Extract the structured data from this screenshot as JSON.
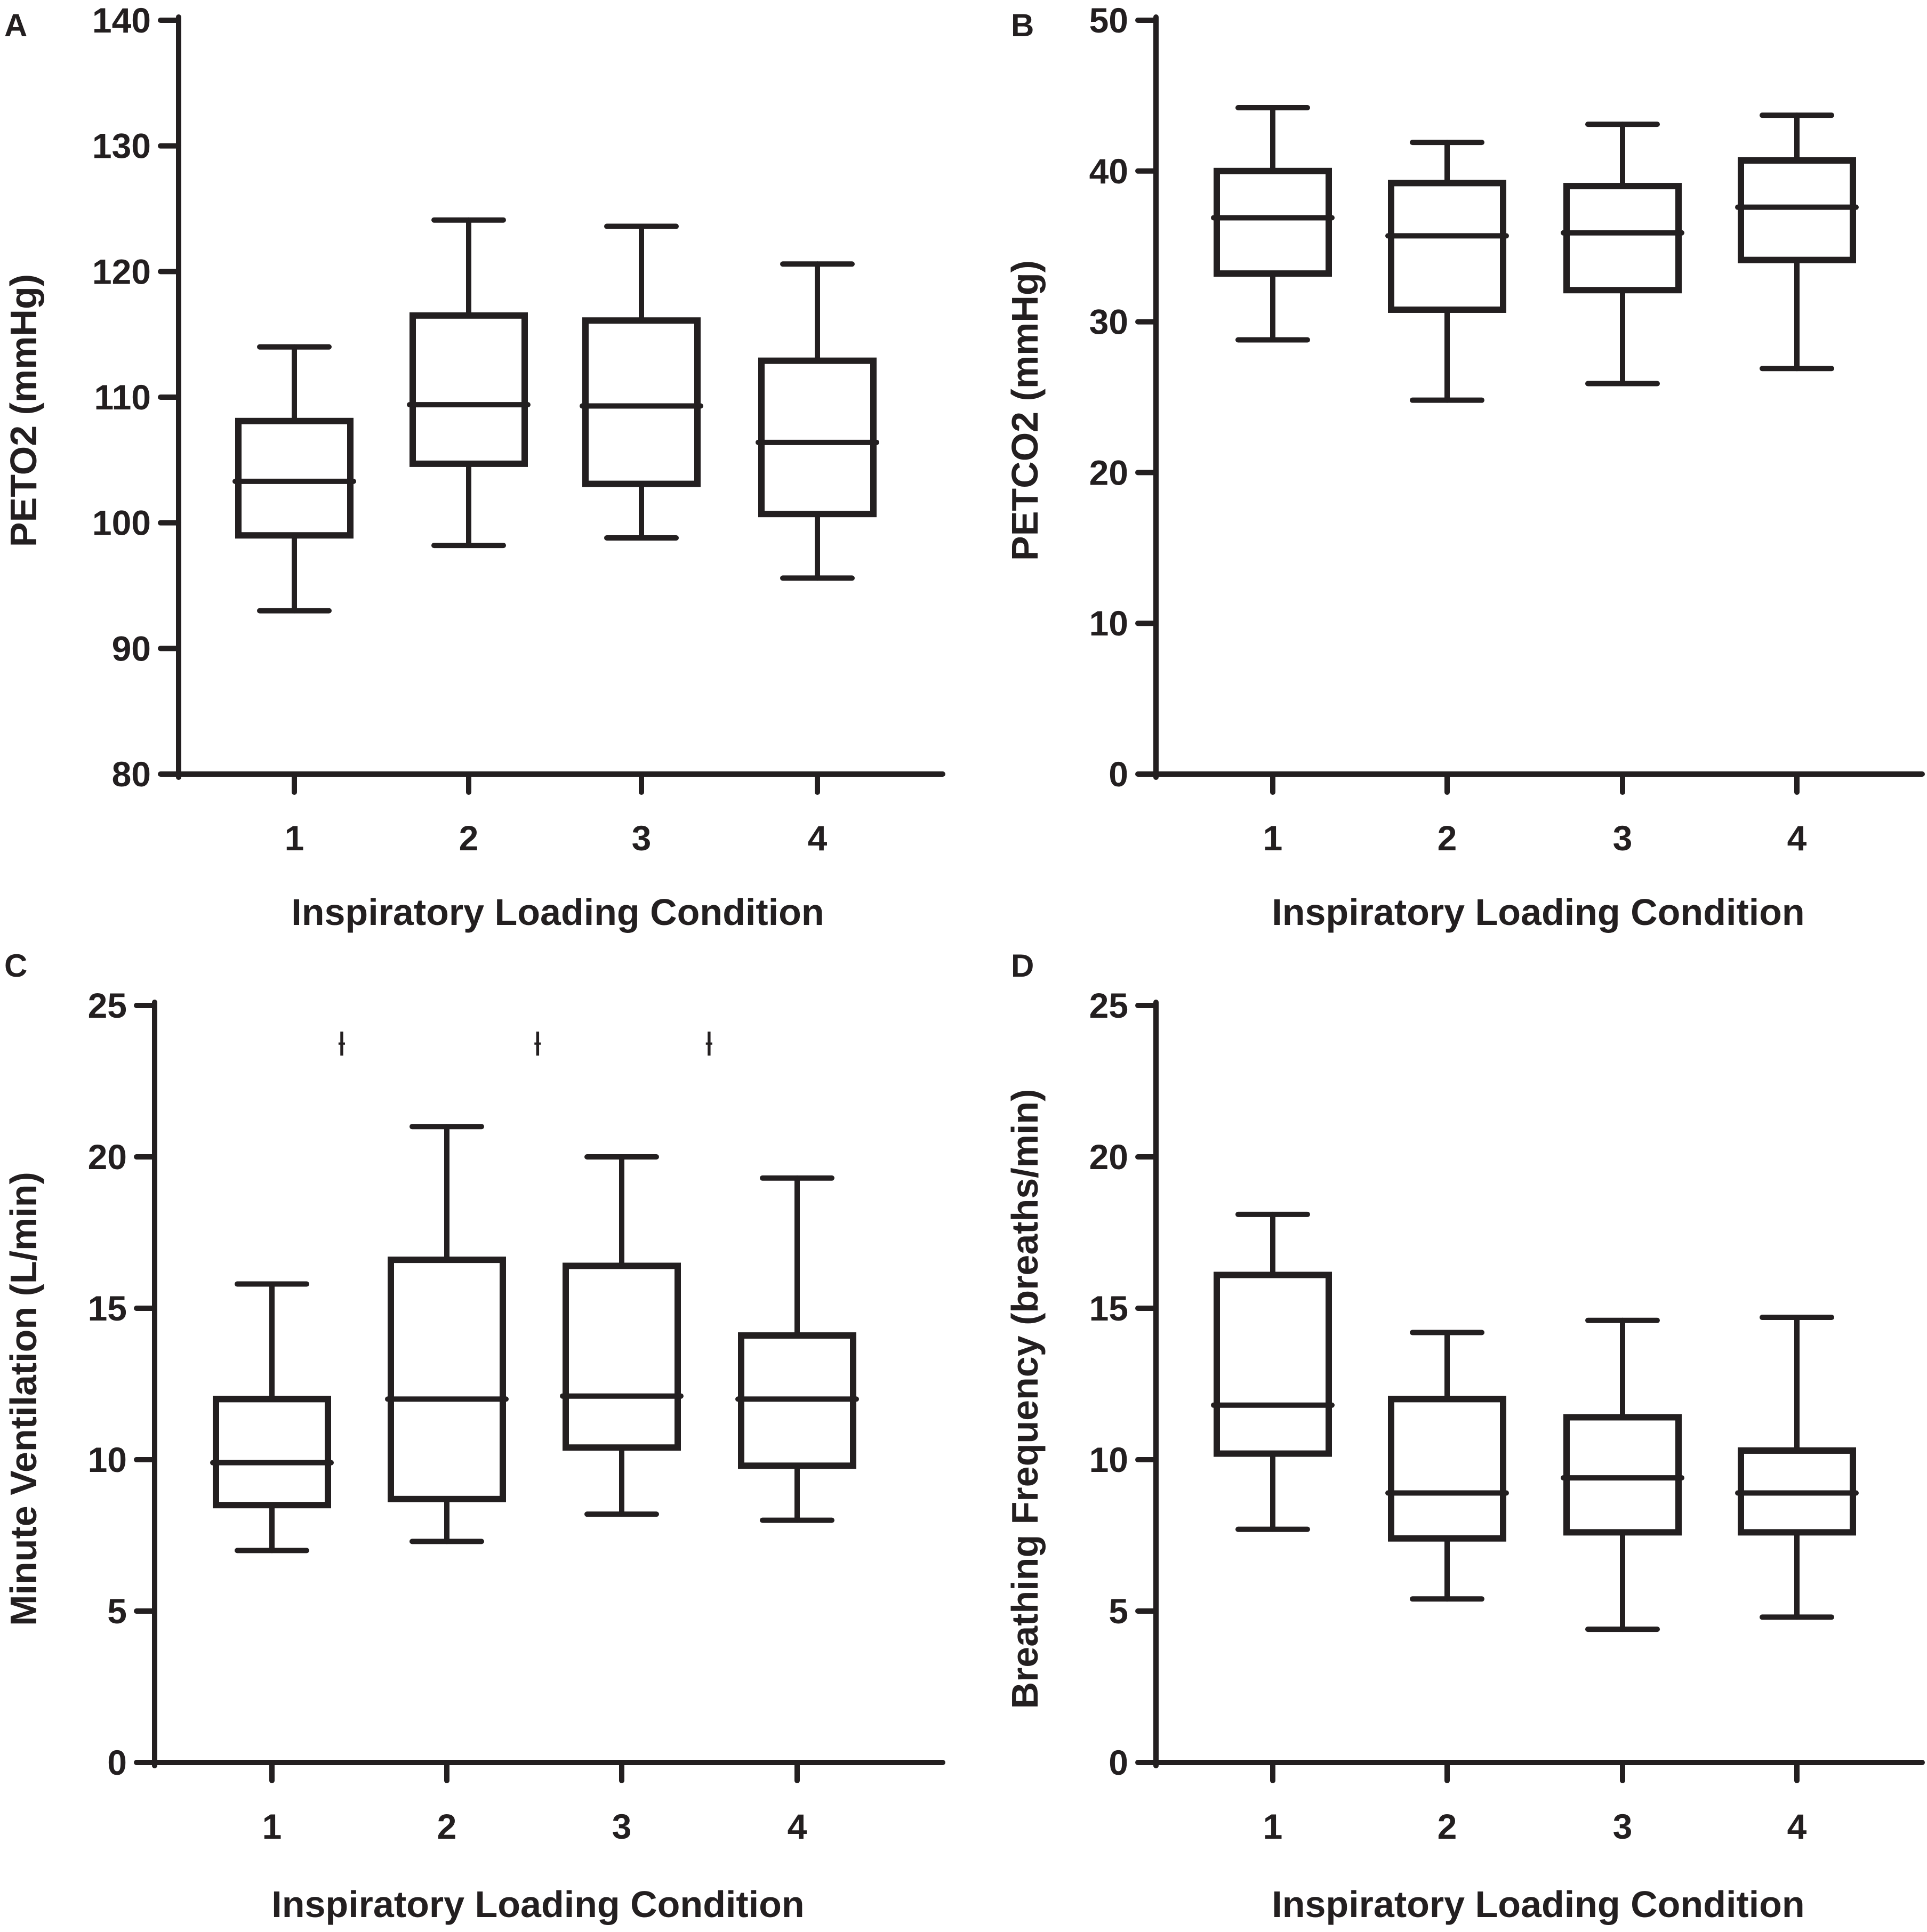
{
  "chart_data": [
    {
      "type": "boxplot",
      "panel": "A",
      "xlabel": "Inspiratory Loading Condition",
      "ylabel": "PETO2 (mmHg)",
      "ylim": [
        80,
        140
      ],
      "yticks": [
        80,
        90,
        100,
        110,
        120,
        130,
        140
      ],
      "categories": [
        "1",
        "2",
        "3",
        "4"
      ],
      "boxes": [
        {
          "min": 93,
          "q1": 99,
          "median": 103.3,
          "q3": 108.1,
          "max": 114
        },
        {
          "min": 98.2,
          "q1": 104.7,
          "median": 109.4,
          "q3": 116.5,
          "max": 124.1
        },
        {
          "min": 98.8,
          "q1": 103.1,
          "median": 109.3,
          "q3": 116.1,
          "max": 123.6
        },
        {
          "min": 95.6,
          "q1": 100.7,
          "median": 106.4,
          "q3": 112.9,
          "max": 120.6
        }
      ],
      "annotations": []
    },
    {
      "type": "boxplot",
      "panel": "B",
      "xlabel": "Inspiratory Loading Condition",
      "ylabel": "PETCO2 (mmHg)",
      "ylim": [
        0,
        50
      ],
      "yticks": [
        0,
        10,
        20,
        30,
        40,
        50
      ],
      "categories": [
        "1",
        "2",
        "3",
        "4"
      ],
      "boxes": [
        {
          "min": 28.8,
          "q1": 33.2,
          "median": 36.9,
          "q3": 40,
          "max": 44.2
        },
        {
          "min": 24.8,
          "q1": 30.8,
          "median": 35.7,
          "q3": 39.2,
          "max": 41.9
        },
        {
          "min": 25.9,
          "q1": 32.1,
          "median": 35.9,
          "q3": 39,
          "max": 43.1
        },
        {
          "min": 26.9,
          "q1": 34.1,
          "median": 37.6,
          "q3": 40.7,
          "max": 43.7
        }
      ],
      "annotations": []
    },
    {
      "type": "boxplot",
      "panel": "C",
      "xlabel": "Inspiratory Loading Condition",
      "ylabel": "Minute Ventilation (L/min)",
      "ylim": [
        0,
        25
      ],
      "yticks": [
        0,
        5,
        10,
        15,
        20,
        25
      ],
      "categories": [
        "1",
        "2",
        "3",
        "4"
      ],
      "boxes": [
        {
          "min": 7,
          "q1": 8.5,
          "median": 9.9,
          "q3": 12,
          "max": 15.8
        },
        {
          "min": 7.3,
          "q1": 8.7,
          "median": 12,
          "q3": 16.6,
          "max": 21
        },
        {
          "min": 8.2,
          "q1": 10.4,
          "median": 12.1,
          "q3": 16.4,
          "max": 20
        },
        {
          "min": 8,
          "q1": 9.8,
          "median": 12,
          "q3": 14.1,
          "max": 19.3
        }
      ],
      "annotations": [
        {
          "symbol": "ƚ",
          "x": 1.4,
          "y": 23.7
        },
        {
          "symbol": "ƚ",
          "x": 2.52,
          "y": 23.7
        },
        {
          "symbol": "ƚ",
          "x": 3.5,
          "y": 23.7
        }
      ]
    },
    {
      "type": "boxplot",
      "panel": "D",
      "xlabel": "Inspiratory Loading Condition",
      "ylabel": "Breathing Frequency (breaths/min)",
      "ylim": [
        0,
        25
      ],
      "yticks": [
        0,
        5,
        10,
        15,
        20,
        25
      ],
      "categories": [
        "1",
        "2",
        "3",
        "4"
      ],
      "boxes": [
        {
          "min": 7.7,
          "q1": 10.2,
          "median": 11.8,
          "q3": 16.1,
          "max": 18.1
        },
        {
          "min": 5.4,
          "q1": 7.4,
          "median": 8.9,
          "q3": 12,
          "max": 14.2
        },
        {
          "min": 4.4,
          "q1": 7.6,
          "median": 9.4,
          "q3": 11.4,
          "max": 14.6
        },
        {
          "min": 4.8,
          "q1": 7.6,
          "median": 8.9,
          "q3": 10.3,
          "max": 14.7
        }
      ],
      "annotations": []
    }
  ]
}
